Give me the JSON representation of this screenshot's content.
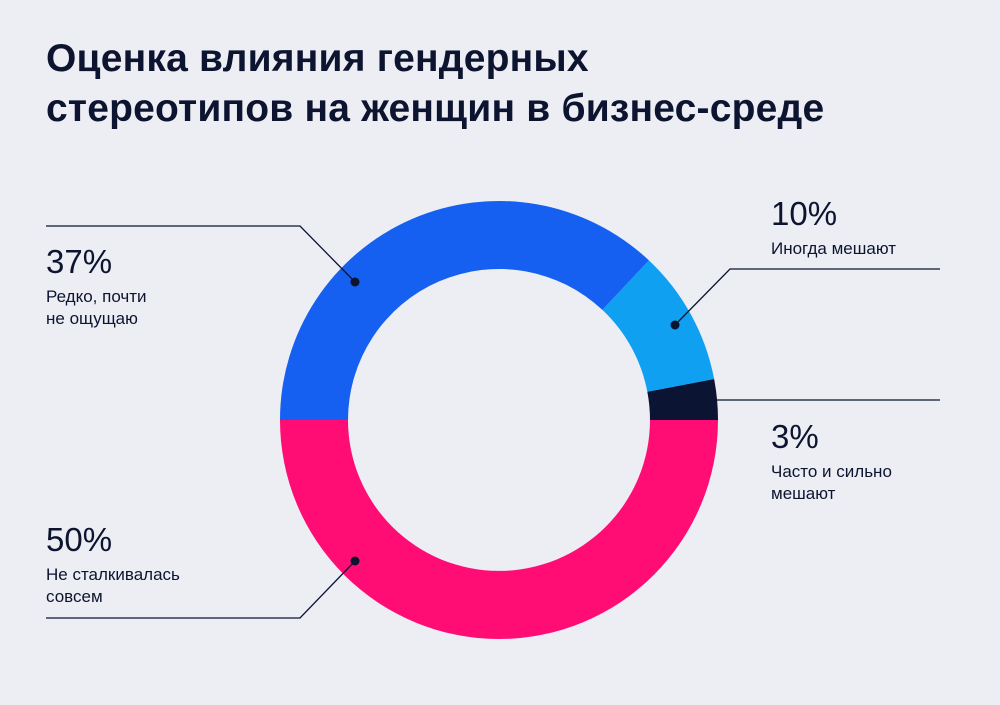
{
  "title_lines": [
    "Оценка влияния гендерных",
    "стереотипов на женщин в бизнес-среде"
  ],
  "colors": {
    "background": "#eceef4",
    "text": "#0c1430",
    "leader": "#0c1430"
  },
  "chart_data": {
    "type": "pie",
    "subtype": "donut",
    "title": "Оценка влияния гендерных стереотипов на женщин в бизнес-среде",
    "slices": [
      {
        "value": 37,
        "label": "37%",
        "desc_lines": [
          "Редко, почти",
          "не ощущаю"
        ],
        "color": "#1560f0"
      },
      {
        "value": 10,
        "label": "10%",
        "desc_lines": [
          "Иногда мешают"
        ],
        "color": "#0fa0f2"
      },
      {
        "value": 3,
        "label": "3%",
        "desc_lines": [
          "Часто и сильно",
          "мешают"
        ],
        "color": "#0b1433"
      },
      {
        "value": 50,
        "label": "50%",
        "desc_lines": [
          "Не сталкивалась",
          "совсем"
        ],
        "color": "#ff0d74"
      }
    ]
  }
}
